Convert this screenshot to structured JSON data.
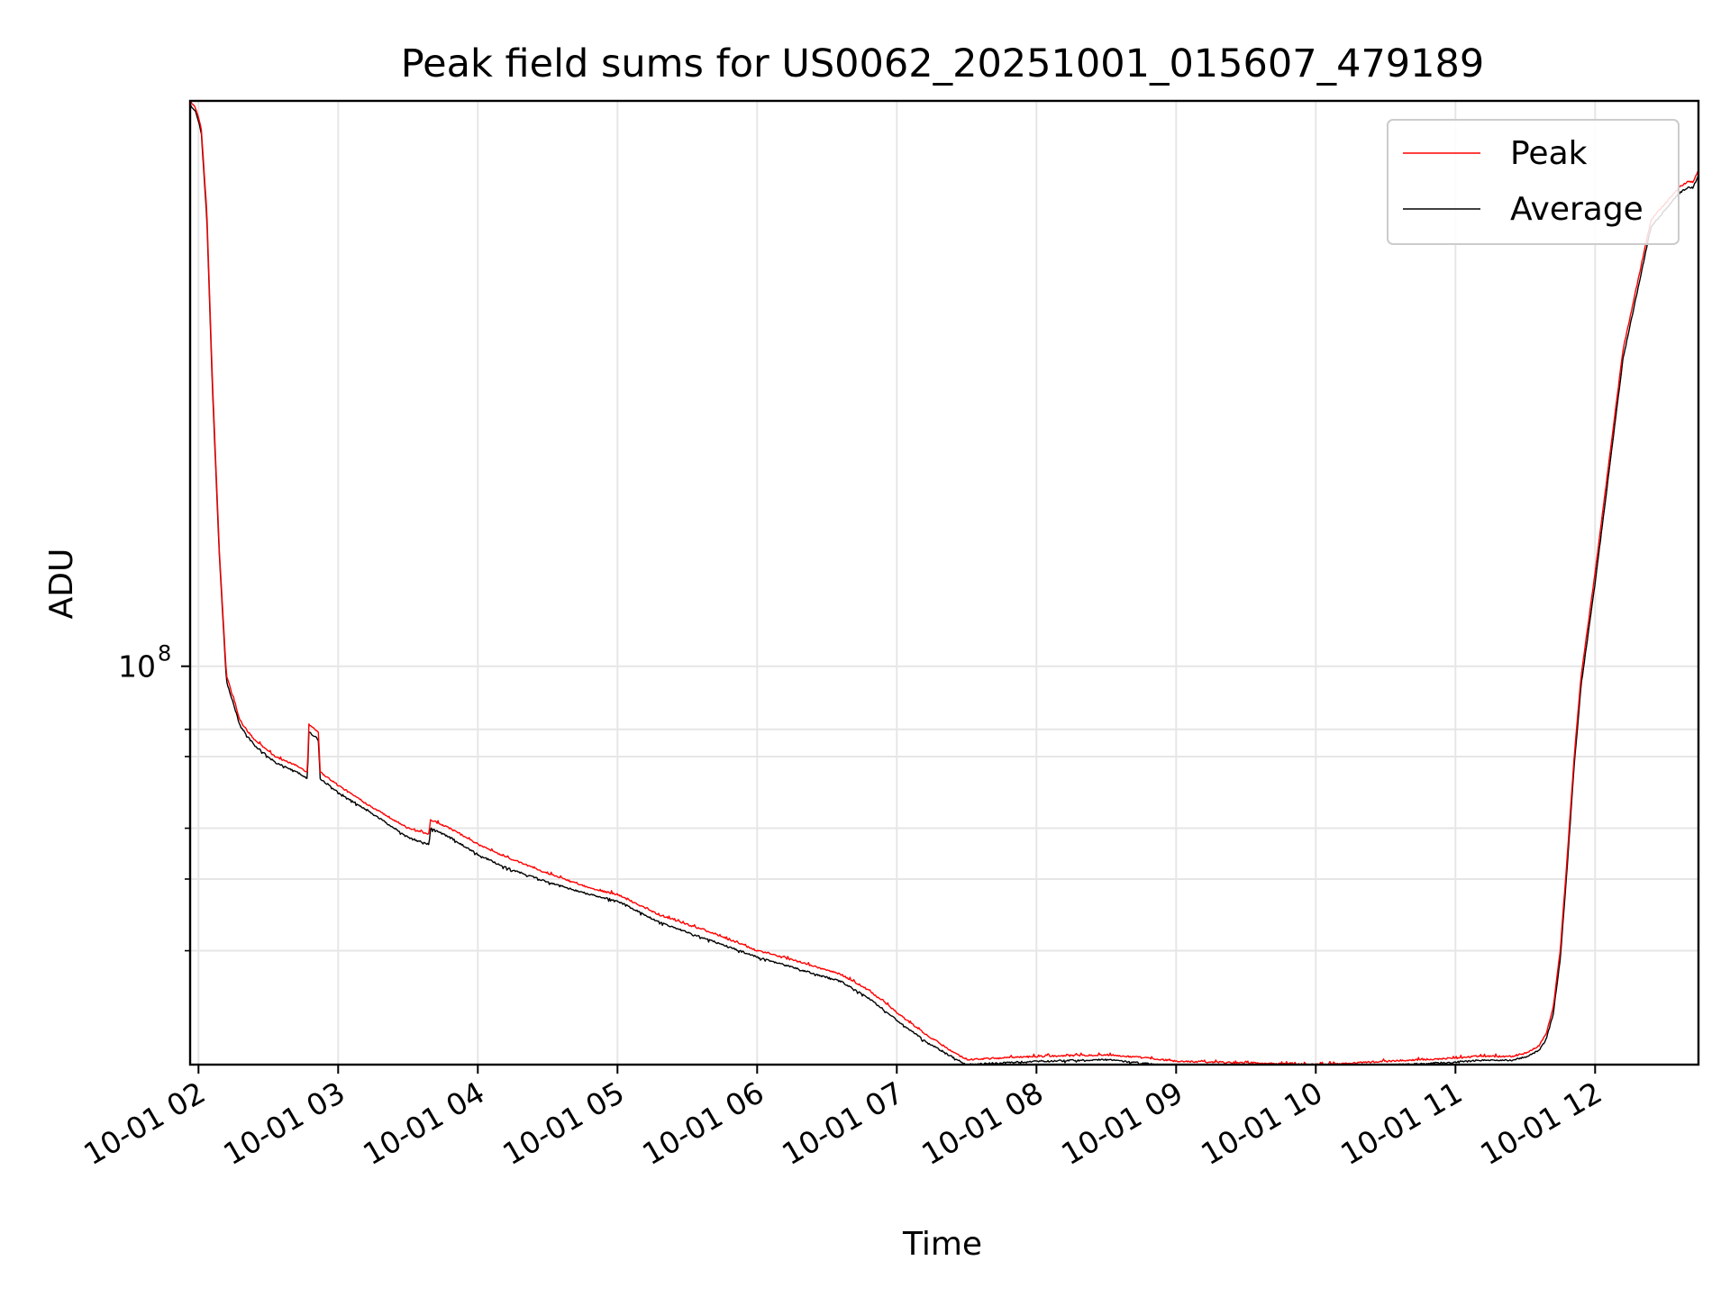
{
  "chart_data": {
    "type": "line",
    "title": "Peak field sums for US0062_20251001_015607_479189",
    "xlabel": "Time",
    "ylabel": "ADU",
    "yscale": "log",
    "grid": true,
    "legend_position": "top-right",
    "xlim_hours": [
      1.94,
      12.74
    ],
    "ylim": [
      10500000,
      2450000000
    ],
    "x_tick_labels": [
      "10-01 02",
      "10-01 03",
      "10-01 04",
      "10-01 05",
      "10-01 06",
      "10-01 07",
      "10-01 08",
      "10-01 09",
      "10-01 10",
      "10-01 11",
      "10-01 12"
    ],
    "x_tick_hours": [
      2,
      3,
      4,
      5,
      6,
      7,
      8,
      9,
      10,
      11,
      12
    ],
    "y_major_ticks": [
      {
        "value": 100000000,
        "base": "10",
        "exp": "8"
      }
    ],
    "y_minor_ticks": [
      20000000,
      30000000,
      40000000,
      60000000,
      70000000
    ],
    "x_hours": [
      1.94,
      1.98,
      2.02,
      2.06,
      2.1,
      2.15,
      2.2,
      2.3,
      2.4,
      2.55,
      2.7,
      2.78,
      2.79,
      2.86,
      2.87,
      3.0,
      3.2,
      3.5,
      3.65,
      3.66,
      3.8,
      4.0,
      4.2,
      4.5,
      4.8,
      5.0,
      5.3,
      5.7,
      6.0,
      6.3,
      6.6,
      6.8,
      7.0,
      7.2,
      7.4,
      7.5,
      8.0,
      8.5,
      8.8,
      9.0,
      9.5,
      10.0,
      10.5,
      11.0,
      11.15,
      11.3,
      11.4,
      11.5,
      11.6,
      11.65,
      11.7,
      11.75,
      11.8,
      11.85,
      11.9,
      12.0,
      12.2,
      12.4,
      12.6,
      12.66,
      12.7,
      12.74
    ],
    "series": [
      {
        "name": "Peak",
        "color": "#ff0000",
        "values": [
          2450000000,
          2350000000,
          2100000000,
          1300000000,
          500000000,
          190000000,
          95000000,
          73000000,
          66000000,
          60000000,
          57000000,
          55000000,
          72000000,
          69000000,
          55000000,
          51000000,
          46000000,
          40000000,
          38500000,
          42000000,
          40000000,
          36500000,
          34000000,
          31000000,
          28500000,
          27500000,
          24500000,
          22000000,
          20000000,
          18800000,
          17500000,
          16000000,
          14100000,
          12500000,
          11300000,
          10800000,
          11000000,
          11100000,
          10900000,
          10700000,
          10600000,
          10500000,
          10700000,
          10900000,
          11000000,
          11000000,
          11000000,
          11200000,
          11700000,
          12500000,
          14500000,
          20000000,
          34000000,
          60000000,
          95000000,
          170000000,
          600000000,
          1250000000,
          1500000000,
          1550000000,
          1550000000,
          1650000000
        ]
      },
      {
        "name": "Average",
        "color": "#000000",
        "values": [
          2400000000,
          2300000000,
          2050000000,
          1250000000,
          480000000,
          185000000,
          92000000,
          71000000,
          64000000,
          58000000,
          55000000,
          53000000,
          69000000,
          66000000,
          53000000,
          49000000,
          44500000,
          38000000,
          36500000,
          40000000,
          38000000,
          34500000,
          32000000,
          29500000,
          27500000,
          26500000,
          23500000,
          21000000,
          19300000,
          18000000,
          16800000,
          15300000,
          13500000,
          12000000,
          10950000,
          10500000,
          10700000,
          10800000,
          10550000,
          10350000,
          10300000,
          10250000,
          10450000,
          10650000,
          10750000,
          10750000,
          10750000,
          10950000,
          11400000,
          12100000,
          14000000,
          19000000,
          32000000,
          57000000,
          90000000,
          160000000,
          570000000,
          1200000000,
          1450000000,
          1500000000,
          1500000000,
          1600000000
        ]
      }
    ]
  }
}
